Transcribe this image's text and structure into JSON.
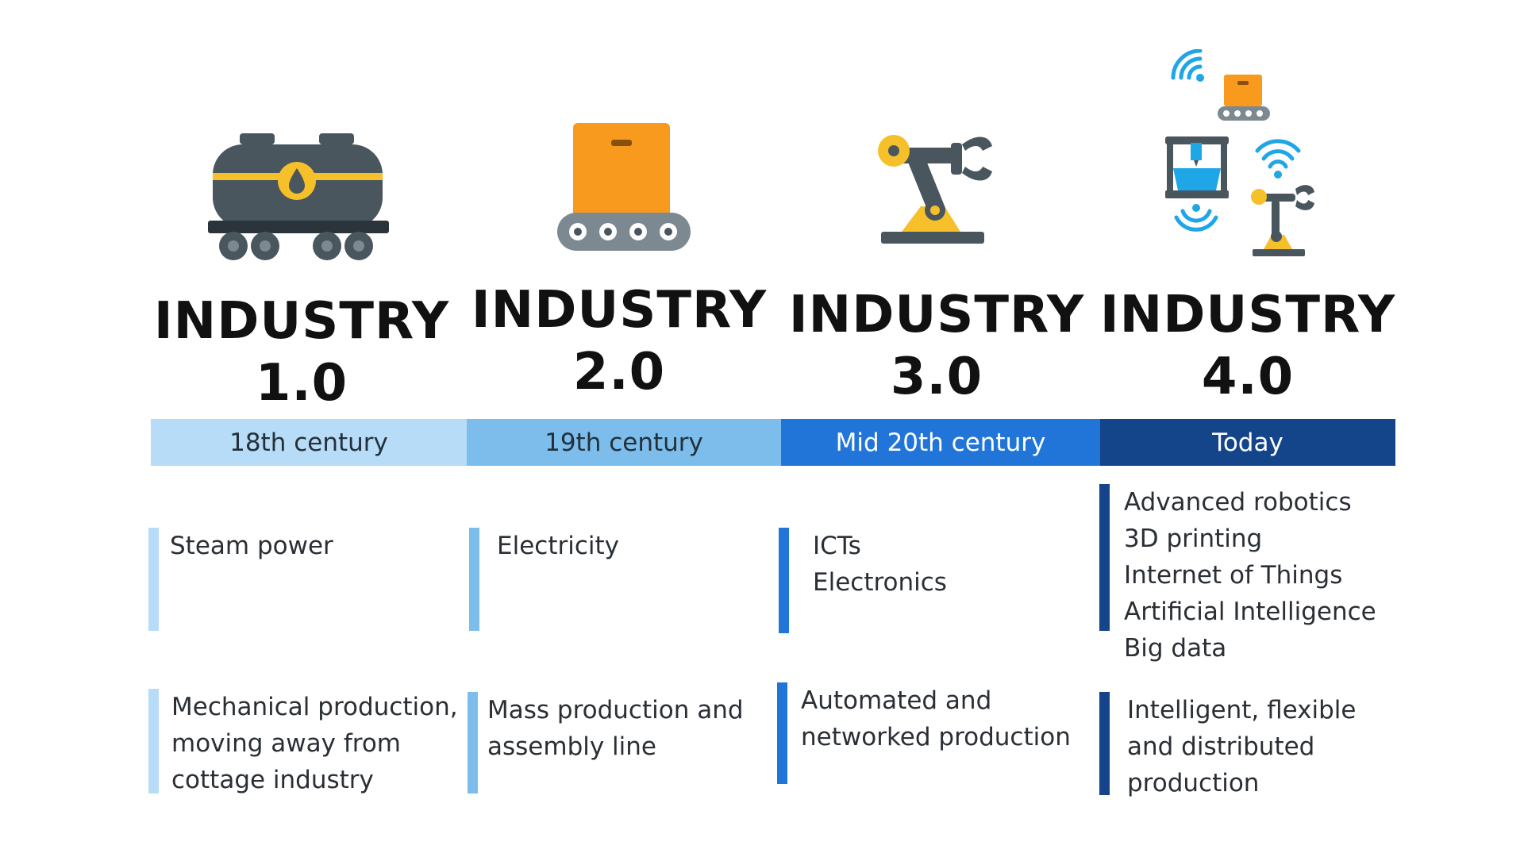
{
  "columns": [
    {
      "title_line1": "INDUSTRY",
      "title_line2": "1.0",
      "period": "18th century",
      "driver": "Steam power",
      "outcome": "Mechanical production,\nmoving away from\ncottage industry",
      "icon": "tank-wagon-icon",
      "color": "#b7dcf7"
    },
    {
      "title_line1": "INDUSTRY",
      "title_line2": "2.0",
      "period": "19th century",
      "driver": "Electricity",
      "outcome": "Mass production and\nassembly line",
      "icon": "conveyor-box-icon",
      "color": "#7cbdec"
    },
    {
      "title_line1": "INDUSTRY",
      "title_line2": "3.0",
      "period": "Mid 20th century",
      "driver": "ICTs\nElectronics",
      "outcome": "Automated and\nnetworked production",
      "icon": "robot-arm-icon",
      "color": "#2175d8"
    },
    {
      "title_line1": "INDUSTRY",
      "title_line2": "4.0",
      "period": "Today",
      "driver": "Advanced robotics\n3D printing\nInternet of Things\nArtificial Intelligence\nBig data",
      "outcome": "Intelligent, flexible\nand distributed\nproduction",
      "icon": "smart-factory-icon",
      "color": "#144489"
    }
  ],
  "icon_colors": {
    "dark_grey": "#4a565e",
    "yellow": "#f6c02b",
    "orange": "#f79a1d",
    "blue": "#1fa6e6"
  }
}
